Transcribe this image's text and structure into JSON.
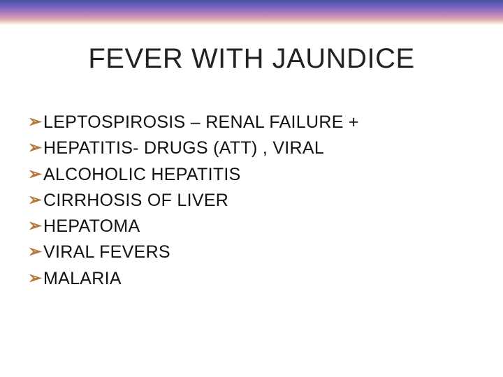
{
  "slide": {
    "title": "FEVER WITH JAUNDICE",
    "title_fontsize": 40,
    "title_color": "#222222",
    "background_color": "#ffffff",
    "top_gradient_colors": [
      "#4f4f9e",
      "#5a5aad",
      "#6f5fba",
      "#8a6ac1",
      "#a87abf",
      "#c08ab8",
      "#d5a0b2",
      "#e8c2bd",
      "#f6e8dc",
      "#ffffff"
    ],
    "bullet_char": "➢",
    "bullet_color": "#b47b3e",
    "bullet_fontsize": 24,
    "item_fontsize": 25,
    "item_color": "#111111",
    "items": [
      "LEPTOSPIROSIS –  RENAL FAILURE +",
      "HEPATITIS- DRUGS (ATT) , VIRAL",
      "ALCOHOLIC HEPATITIS",
      "CIRRHOSIS OF LIVER",
      "HEPATOMA",
      "VIRAL FEVERS",
      "MALARIA"
    ]
  }
}
